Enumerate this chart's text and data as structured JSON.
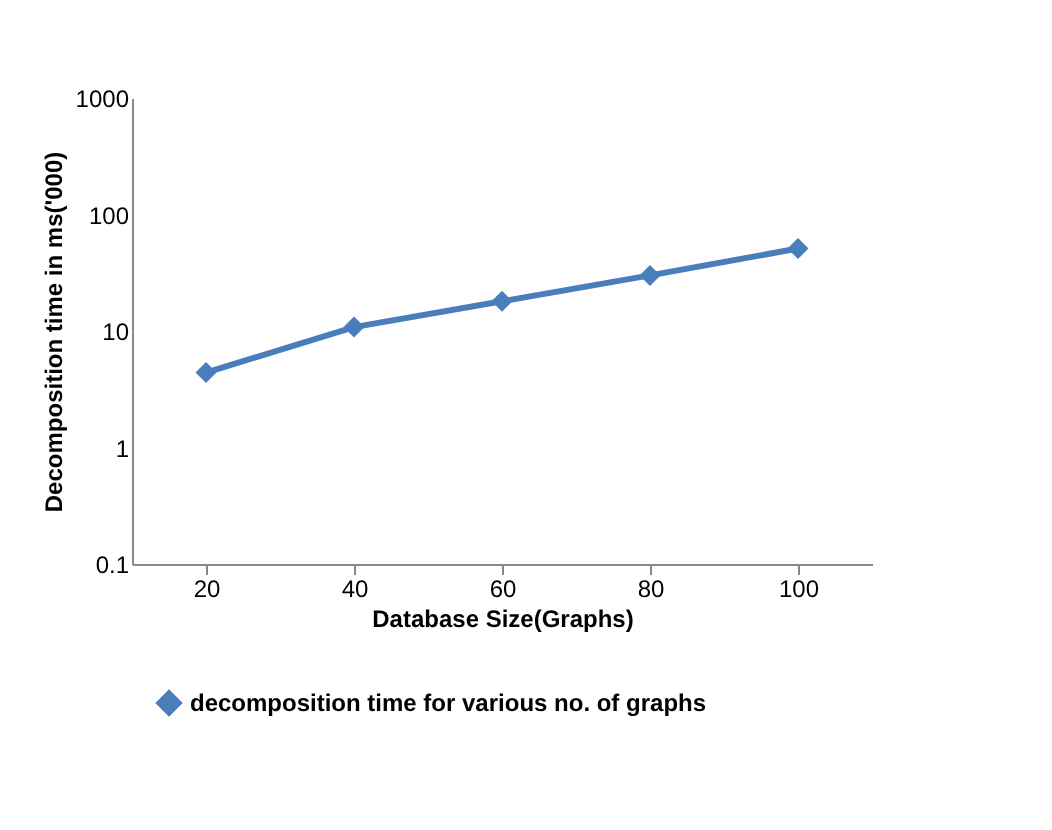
{
  "chart_data": {
    "type": "line",
    "xlabel": "Database Size(Graphs)",
    "ylabel": "Decomposition time in ms('000)",
    "categories": [
      "20",
      "40",
      "60",
      "80",
      "100"
    ],
    "series": [
      {
        "name": "decomposition time for various no. of graphs",
        "color": "#4a7ebb",
        "values": [
          4.4,
          10.8,
          18,
          30,
          51
        ]
      }
    ],
    "log": true,
    "ylim": [
      0.1,
      1000
    ],
    "yticks": [
      0.1,
      1,
      10,
      100,
      1000
    ],
    "legend": "bottom",
    "marker": "diamond",
    "line_style": "solid"
  }
}
